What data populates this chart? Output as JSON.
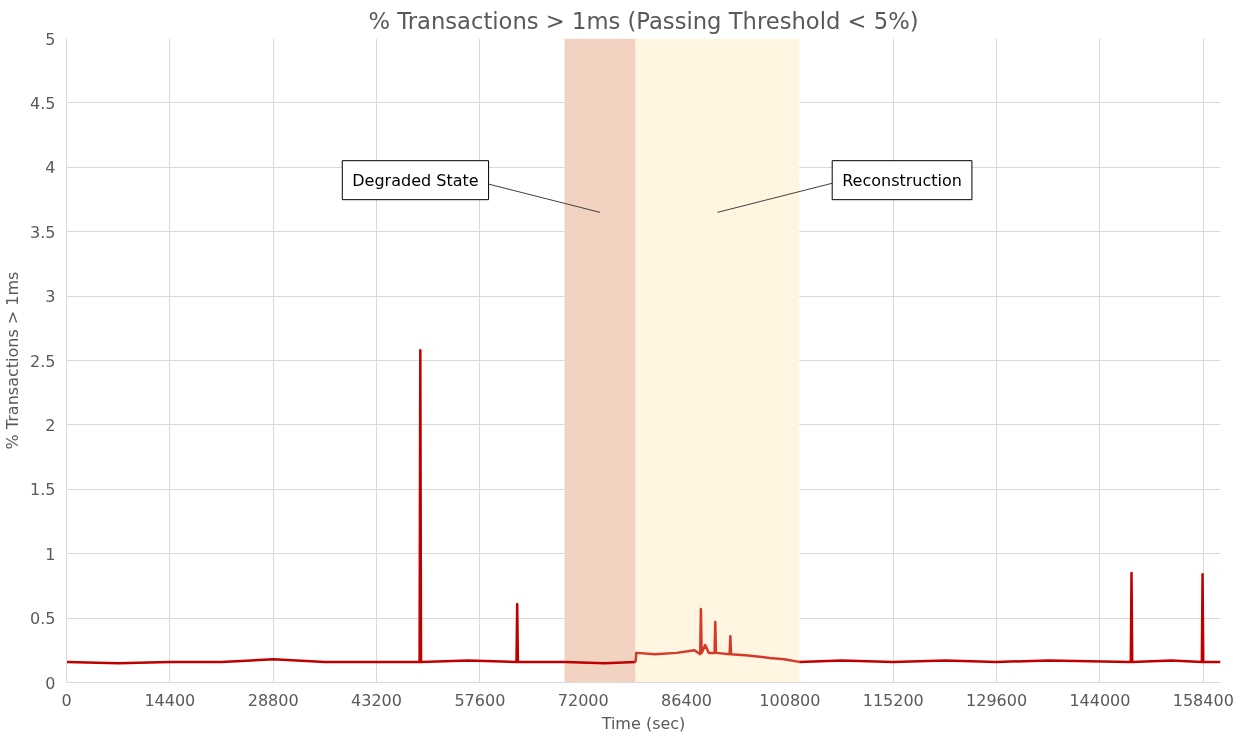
{
  "chart_data": {
    "type": "line",
    "title": "% Transactions > 1ms (Passing Threshold < 5%)",
    "xlabel": "Time (sec)",
    "ylabel": "% Transactions > 1ms",
    "xlim": [
      0,
      160800
    ],
    "xticks": [
      0,
      14400,
      28800,
      43200,
      57600,
      72000,
      86400,
      100800,
      115200,
      129600,
      144000,
      158400
    ],
    "ylim": [
      0,
      5
    ],
    "yticks": [
      0,
      0.5,
      1,
      1.5,
      2,
      2.5,
      3,
      3.5,
      4,
      4.5,
      5
    ],
    "grid": true,
    "line_style": "solid",
    "marker": "none",
    "bands": [
      {
        "axis": "x",
        "from": 69400,
        "to": 79300,
        "label": "Degraded State",
        "color": "#f2d3c2"
      },
      {
        "axis": "x",
        "from": 79300,
        "to": 102100,
        "label": "Reconstruction",
        "color": "#fff5e1"
      }
    ],
    "series": [
      {
        "color": "#c00000",
        "x": [
          0,
          7200,
          14400,
          21600,
          28800,
          36000,
          43200,
          49200,
          49300,
          49400,
          56000,
          62700,
          62800,
          62900,
          69400,
          75000,
          79300,
          90000,
          102100,
          108000,
          115200,
          122400,
          129600,
          136800,
          148300,
          148400,
          148500,
          154000,
          158200,
          158300,
          158400,
          160800
        ],
        "values": [
          0.16,
          0.15,
          0.16,
          0.16,
          0.18,
          0.16,
          0.16,
          0.16,
          2.58,
          0.16,
          0.17,
          0.16,
          0.61,
          0.16,
          0.16,
          0.15,
          0.16,
          null,
          0.16,
          0.17,
          0.16,
          0.17,
          0.16,
          0.17,
          0.16,
          0.85,
          0.16,
          0.17,
          0.16,
          0.84,
          0.16,
          0.16
        ]
      },
      {
        "color": "#d43a2a",
        "x": [
          79300,
          79400,
          82000,
          85000,
          87500,
          88300,
          88400,
          88500,
          89000,
          89500,
          90300,
          90400,
          90500,
          92400,
          92500,
          92600,
          95000,
          98000,
          100000,
          102100
        ],
        "values": [
          0.16,
          0.23,
          0.22,
          0.23,
          0.25,
          0.22,
          0.57,
          0.23,
          0.29,
          0.23,
          0.23,
          0.47,
          0.23,
          0.22,
          0.36,
          0.22,
          0.21,
          0.19,
          0.18,
          0.16
        ]
      }
    ]
  }
}
